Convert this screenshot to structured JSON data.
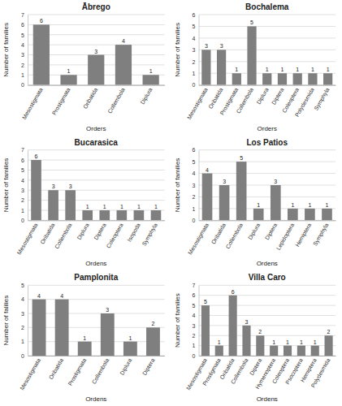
{
  "chart_data": [
    {
      "type": "bar",
      "title": "Ābrego",
      "xlabel": "Orders",
      "ylabel": "Number of families",
      "categories": [
        "Mesostigmata",
        "Prostigmata",
        "Oribatida",
        "Collembola",
        "Diplura"
      ],
      "values": [
        6,
        1,
        3,
        4,
        1
      ],
      "color": "#7f7f7f",
      "ylim": [
        0,
        7
      ],
      "yticks": [
        0,
        1,
        2,
        3,
        4,
        5,
        6,
        7
      ],
      "grid": true,
      "data_labels": true
    },
    {
      "type": "bar",
      "title": "Bochalema",
      "xlabel": "Orders",
      "ylabel": "Number of families",
      "categories": [
        "Mesostigmata",
        "Oribatida",
        "Prostigmata",
        "Collembola",
        "Diplura",
        "Diptera",
        "Coleoptera",
        "Polydesmida",
        "Symphyla"
      ],
      "values": [
        3,
        3,
        1,
        5,
        1,
        1,
        1,
        1,
        1
      ],
      "color": "#7f7f7f",
      "ylim": [
        0,
        6
      ],
      "yticks": [
        0,
        1,
        2,
        3,
        4,
        5,
        6
      ],
      "grid": true,
      "data_labels": true
    },
    {
      "type": "bar",
      "title": "Bucarasica",
      "xlabel": "Ordens",
      "ylabel": "Number of families",
      "categories": [
        "Mesostigmata",
        "Oribatida",
        "Collembola",
        "Diplura",
        "Diptera",
        "Coleoptera",
        "Isopoda",
        "Symphyla"
      ],
      "values": [
        6,
        3,
        3,
        1,
        1,
        1,
        1,
        1
      ],
      "color": "#7f7f7f",
      "ylim": [
        0,
        7
      ],
      "yticks": [
        0,
        1,
        2,
        3,
        4,
        5,
        6,
        7
      ],
      "grid": true,
      "data_labels": true
    },
    {
      "type": "bar",
      "title": "Los Patios",
      "xlabel": "Ordens",
      "ylabel": "Number of families",
      "categories": [
        "Mesostigmata",
        "Oribatida",
        "Collembola",
        "Diplura",
        "Diptera",
        "Lepidoptera",
        "Hemiptera",
        "Symphyla"
      ],
      "values": [
        4,
        3,
        5,
        1,
        3,
        1,
        1,
        1
      ],
      "color": "#7f7f7f",
      "ylim": [
        0,
        6
      ],
      "yticks": [
        0,
        1,
        2,
        3,
        4,
        5,
        6
      ],
      "grid": true,
      "data_labels": true
    },
    {
      "type": "bar",
      "title": "Pamplonita",
      "xlabel": "Ordens",
      "ylabel": "Number of falilies",
      "categories": [
        "Mesostigmata",
        "Oribatida",
        "Prostigmata",
        "Collembola",
        "Diplura",
        "Diptera"
      ],
      "values": [
        4,
        4,
        1,
        3,
        1,
        2
      ],
      "color": "#7f7f7f",
      "ylim": [
        0,
        5
      ],
      "yticks": [
        0,
        1,
        2,
        3,
        4,
        5
      ],
      "grid": true,
      "data_labels": true
    },
    {
      "type": "bar",
      "title": "Villa Caro",
      "xlabel": "Ordens",
      "ylabel": "Number of families",
      "categories": [
        "Mesostigmata",
        "Prostigmata",
        "Oribatida",
        "Collembola",
        "Diptera",
        "Hymenoptera",
        "Coleoptera",
        "Psocoptera",
        "Hemiptera",
        "Polydesmida"
      ],
      "values": [
        5,
        1,
        6,
        3,
        2,
        1,
        1,
        1,
        1,
        2
      ],
      "color": "#7f7f7f",
      "ylim": [
        0,
        7
      ],
      "yticks": [
        0,
        1,
        2,
        3,
        4,
        5,
        6,
        7
      ],
      "grid": true,
      "data_labels": true
    }
  ]
}
